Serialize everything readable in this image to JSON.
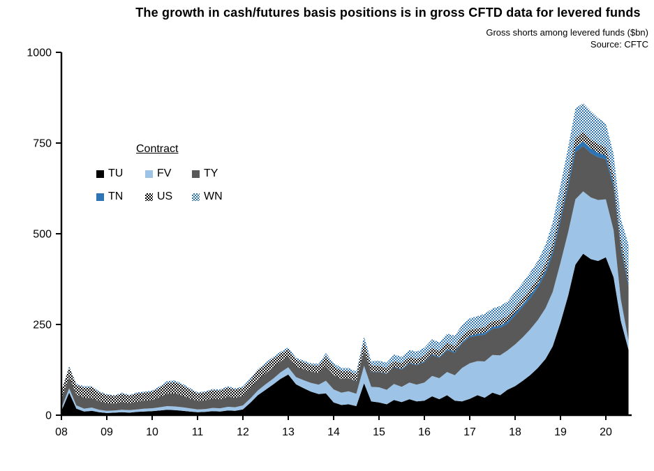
{
  "header": {
    "title": "The growth in cash/futures basis positions is in gross CFTD data for levered funds",
    "subtitle": "Gross shorts among levered funds ($bn)",
    "source": "Source: CFTC"
  },
  "legend": {
    "title": "Contract"
  },
  "chart_data": {
    "type": "area",
    "stacked": true,
    "title": "The growth in cash/futures basis positions is in gross CFTD data for levered funds",
    "ylabel": "Gross shorts among levered funds ($bn)",
    "ylim": [
      0,
      1000
    ],
    "yticks": [
      0,
      250,
      500,
      750,
      1000
    ],
    "xtick_years": [
      2008,
      2009,
      2010,
      2011,
      2012,
      2013,
      2014,
      2015,
      2016,
      2017,
      2018,
      2019,
      2020
    ],
    "xtick_labels": [
      "08",
      "09",
      "10",
      "11",
      "12",
      "13",
      "14",
      "15",
      "16",
      "17",
      "18",
      "19",
      "20"
    ],
    "grid": false,
    "legend_position": "upper-left-inside",
    "x": [
      2008.0,
      2008.17,
      2008.33,
      2008.5,
      2008.67,
      2008.83,
      2009.0,
      2009.17,
      2009.33,
      2009.5,
      2009.67,
      2009.83,
      2010.0,
      2010.17,
      2010.33,
      2010.5,
      2010.67,
      2010.83,
      2011.0,
      2011.17,
      2011.33,
      2011.5,
      2011.67,
      2011.83,
      2012.0,
      2012.17,
      2012.33,
      2012.5,
      2012.67,
      2012.83,
      2013.0,
      2013.17,
      2013.33,
      2013.5,
      2013.67,
      2013.83,
      2014.0,
      2014.17,
      2014.33,
      2014.5,
      2014.67,
      2014.83,
      2015.0,
      2015.17,
      2015.33,
      2015.5,
      2015.67,
      2015.83,
      2016.0,
      2016.17,
      2016.33,
      2016.5,
      2016.67,
      2016.83,
      2017.0,
      2017.17,
      2017.33,
      2017.5,
      2017.67,
      2017.83,
      2018.0,
      2018.17,
      2018.33,
      2018.5,
      2018.67,
      2018.83,
      2019.0,
      2019.17,
      2019.33,
      2019.5,
      2019.67,
      2019.83,
      2020.0,
      2020.17,
      2020.33,
      2020.5
    ],
    "series": [
      {
        "name": "TU",
        "color": "#000000",
        "pattern": "solid",
        "values": [
          12,
          62,
          18,
          10,
          12,
          8,
          6,
          7,
          8,
          7,
          9,
          10,
          11,
          13,
          15,
          14,
          12,
          10,
          8,
          9,
          11,
          10,
          13,
          12,
          16,
          35,
          55,
          70,
          85,
          100,
          112,
          85,
          75,
          65,
          58,
          60,
          35,
          28,
          30,
          25,
          88,
          38,
          35,
          30,
          42,
          36,
          44,
          38,
          40,
          52,
          44,
          55,
          40,
          38,
          45,
          55,
          48,
          62,
          55,
          70,
          80,
          95,
          110,
          130,
          155,
          190,
          255,
          330,
          415,
          445,
          430,
          425,
          435,
          380,
          260,
          180
        ]
      },
      {
        "name": "FV",
        "color": "#9DC3E6",
        "pattern": "solid",
        "values": [
          8,
          12,
          9,
          8,
          9,
          7,
          6,
          6,
          7,
          7,
          7,
          8,
          8,
          9,
          10,
          10,
          10,
          9,
          8,
          8,
          9,
          9,
          10,
          10,
          11,
          12,
          13,
          15,
          16,
          18,
          20,
          20,
          22,
          24,
          26,
          35,
          36,
          34,
          36,
          34,
          48,
          40,
          42,
          40,
          44,
          42,
          46,
          46,
          50,
          56,
          58,
          64,
          70,
          92,
          98,
          94,
          100,
          104,
          110,
          108,
          115,
          120,
          126,
          132,
          140,
          150,
          165,
          175,
          180,
          172,
          170,
          168,
          160,
          130,
          60,
          25
        ]
      },
      {
        "name": "TY",
        "color": "#595959",
        "pattern": "solid",
        "values": [
          26,
          32,
          30,
          30,
          26,
          24,
          21,
          19,
          21,
          19,
          21,
          22,
          23,
          28,
          34,
          36,
          32,
          27,
          23,
          24,
          26,
          25,
          28,
          26,
          26,
          28,
          30,
          30,
          31,
          30,
          30,
          29,
          30,
          31,
          33,
          40,
          40,
          38,
          36,
          34,
          42,
          40,
          42,
          44,
          46,
          48,
          52,
          54,
          56,
          58,
          56,
          60,
          62,
          68,
          72,
          70,
          74,
          72,
          76,
          74,
          80,
          84,
          86,
          90,
          96,
          104,
          115,
          125,
          130,
          125,
          122,
          118,
          110,
          120,
          140,
          150
        ]
      },
      {
        "name": "TN",
        "color": "#2E75B6",
        "pattern": "solid",
        "values": [
          0,
          0,
          0,
          0,
          0,
          0,
          0,
          0,
          0,
          0,
          0,
          0,
          0,
          0,
          0,
          0,
          0,
          0,
          0,
          0,
          0,
          0,
          0,
          0,
          0,
          0,
          0,
          0,
          0,
          0,
          0,
          0,
          0,
          0,
          0,
          0,
          0,
          0,
          0,
          1,
          1,
          1,
          1,
          1,
          1,
          2,
          2,
          2,
          2,
          2,
          3,
          3,
          3,
          4,
          4,
          5,
          5,
          5,
          6,
          6,
          7,
          7,
          8,
          8,
          9,
          10,
          11,
          12,
          13,
          13,
          13,
          12,
          11,
          10,
          9,
          10
        ]
      },
      {
        "name": "US",
        "color": "#000000",
        "pattern": "checker",
        "values": [
          20,
          26,
          26,
          28,
          30,
          24,
          23,
          21,
          23,
          21,
          23,
          22,
          23,
          26,
          30,
          31,
          28,
          25,
          21,
          22,
          23,
          24,
          25,
          23,
          23,
          24,
          25,
          25,
          24,
          22,
          20,
          19,
          19,
          18,
          19,
          28,
          24,
          22,
          20,
          18,
          22,
          18,
          16,
          15,
          16,
          15,
          16,
          15,
          16,
          17,
          16,
          17,
          16,
          16,
          16,
          15,
          16,
          15,
          16,
          15,
          16,
          16,
          17,
          17,
          18,
          20,
          22,
          25,
          27,
          25,
          25,
          24,
          22,
          20,
          18,
          20
        ]
      },
      {
        "name": "WN",
        "color": "#2E75B6",
        "pattern": "checker",
        "values": [
          2,
          3,
          3,
          4,
          3,
          3,
          2,
          2,
          3,
          2,
          3,
          3,
          3,
          4,
          5,
          5,
          4,
          4,
          3,
          3,
          3,
          3,
          4,
          3,
          3,
          4,
          4,
          5,
          5,
          5,
          5,
          5,
          5,
          5,
          6,
          8,
          9,
          8,
          8,
          8,
          16,
          12,
          14,
          15,
          18,
          18,
          20,
          20,
          22,
          24,
          24,
          26,
          28,
          30,
          32,
          34,
          36,
          36,
          38,
          40,
          42,
          44,
          46,
          48,
          52,
          58,
          65,
          72,
          80,
          80,
          78,
          72,
          66,
          60,
          55,
          85
        ]
      }
    ]
  }
}
